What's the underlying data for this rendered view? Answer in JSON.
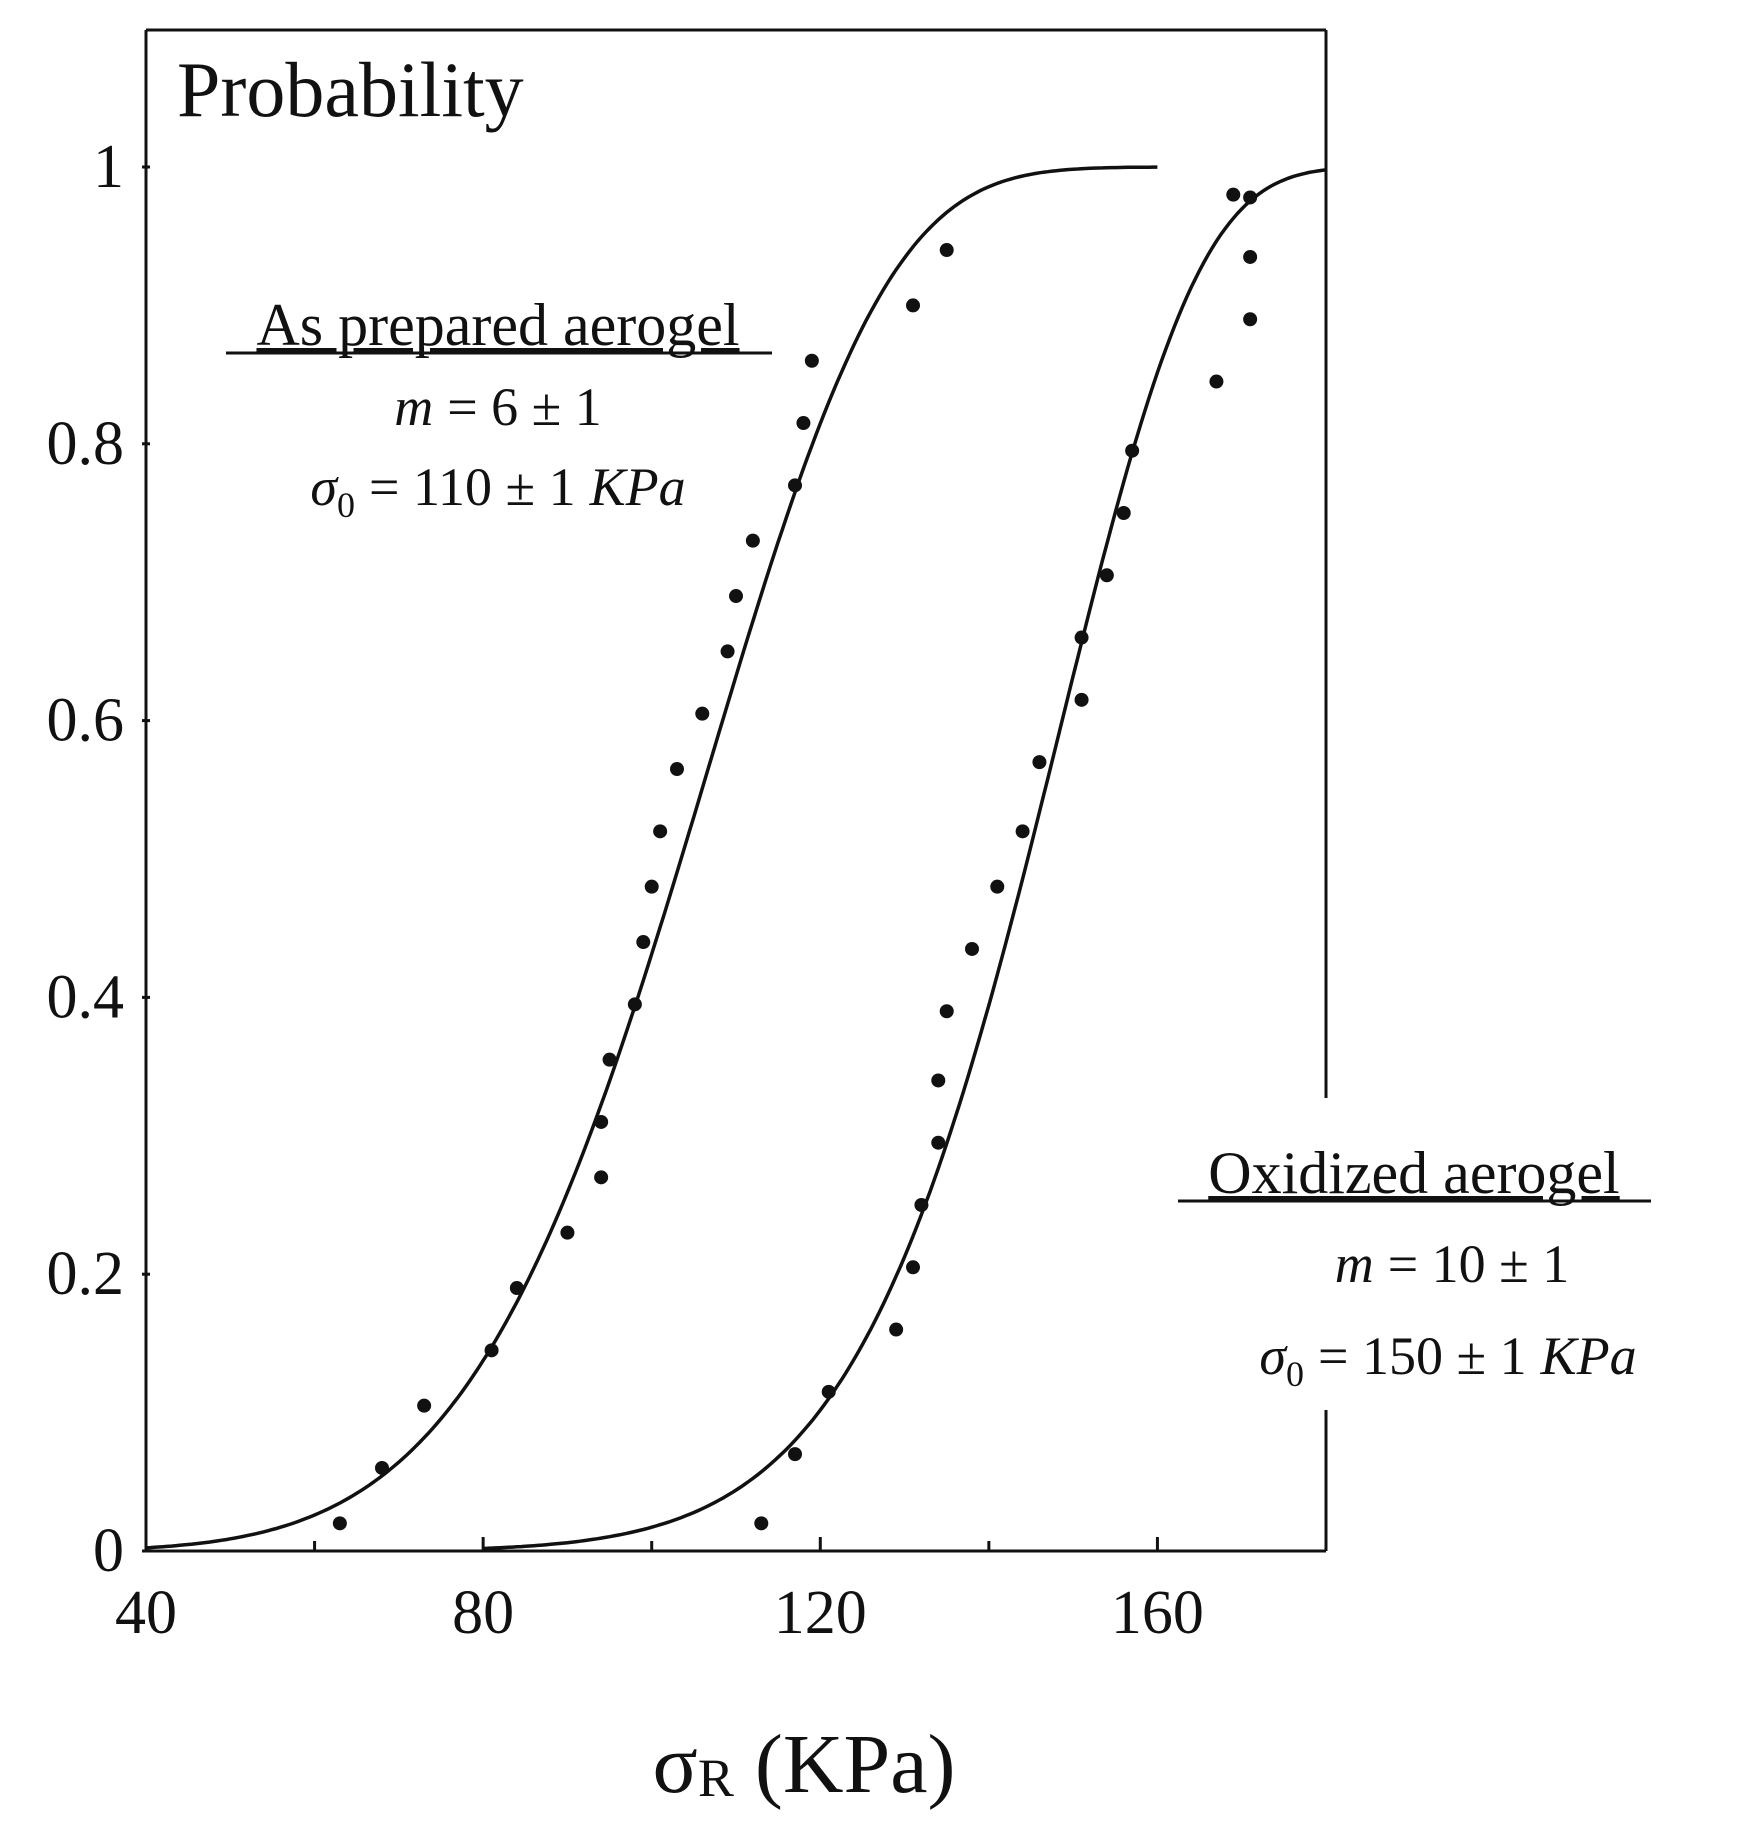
{
  "chart_data": {
    "type": "line",
    "title": "",
    "ylabel": "Probability",
    "xlabel_symbol": "σ",
    "xlabel_sub": "R",
    "xlabel_unit": " (KPa)",
    "xlim": [
      40,
      180
    ],
    "ylim": [
      0,
      1.1
    ],
    "x_ticks": [
      40,
      80,
      120,
      160
    ],
    "x_tick_labels": [
      "40",
      "80",
      "120",
      "160"
    ],
    "y_ticks": [
      0,
      0.2,
      0.4,
      0.6,
      0.8,
      1
    ],
    "y_tick_labels": [
      "0",
      "0.2",
      "0.4",
      "0.6",
      "0.8",
      "1"
    ],
    "grid": false,
    "series": [
      {
        "name": "As prepared aerogel",
        "annotation": {
          "title": "As prepared aerogel",
          "m_label": "m",
          "m_value": "= 6 ± 1",
          "sigma_label": "σ",
          "sigma_sub": "0",
          "sigma_value": "= 110 ± 1",
          "sigma_unit": "KPa"
        },
        "fit": {
          "model": "weibull",
          "m": 6,
          "sigma0": 110,
          "x_start": 40,
          "x_end": 160
        },
        "points": [
          [
            63,
            0.02
          ],
          [
            68,
            0.06
          ],
          [
            73,
            0.105
          ],
          [
            81,
            0.145
          ],
          [
            84,
            0.19
          ],
          [
            90,
            0.23
          ],
          [
            94,
            0.27
          ],
          [
            94,
            0.31
          ],
          [
            95,
            0.355
          ],
          [
            98,
            0.395
          ],
          [
            99,
            0.44
          ],
          [
            100,
            0.48
          ],
          [
            101,
            0.52
          ],
          [
            103,
            0.565
          ],
          [
            106,
            0.605
          ],
          [
            109,
            0.65
          ],
          [
            110,
            0.69
          ],
          [
            112,
            0.73
          ],
          [
            117,
            0.77
          ],
          [
            118,
            0.815
          ],
          [
            119,
            0.86
          ],
          [
            131,
            0.9
          ],
          [
            135,
            0.94
          ]
        ]
      },
      {
        "name": "Oxidized aerogel",
        "annotation": {
          "title": "Oxidized aerogel",
          "m_label": "m",
          "m_value": "= 10 ± 1",
          "sigma_label": "σ",
          "sigma_sub": "0",
          "sigma_value": "= 150 ± 1",
          "sigma_unit": "KPa"
        },
        "fit": {
          "model": "weibull",
          "m": 10,
          "sigma0": 150,
          "x_start": 80,
          "x_end": 180
        },
        "points": [
          [
            113,
            0.02
          ],
          [
            117,
            0.07
          ],
          [
            121,
            0.115
          ],
          [
            129,
            0.16
          ],
          [
            131,
            0.205
          ],
          [
            132,
            0.25
          ],
          [
            134,
            0.295
          ],
          [
            134,
            0.34
          ],
          [
            135,
            0.39
          ],
          [
            138,
            0.435
          ],
          [
            141,
            0.48
          ],
          [
            144,
            0.52
          ],
          [
            146,
            0.57
          ],
          [
            151,
            0.615
          ],
          [
            151,
            0.66
          ],
          [
            154,
            0.705
          ],
          [
            156,
            0.75
          ],
          [
            157,
            0.795
          ],
          [
            167,
            0.845
          ],
          [
            171,
            0.89
          ],
          [
            171,
            0.935
          ],
          [
            169,
            0.98
          ],
          [
            171,
            0.978
          ]
        ]
      }
    ]
  }
}
